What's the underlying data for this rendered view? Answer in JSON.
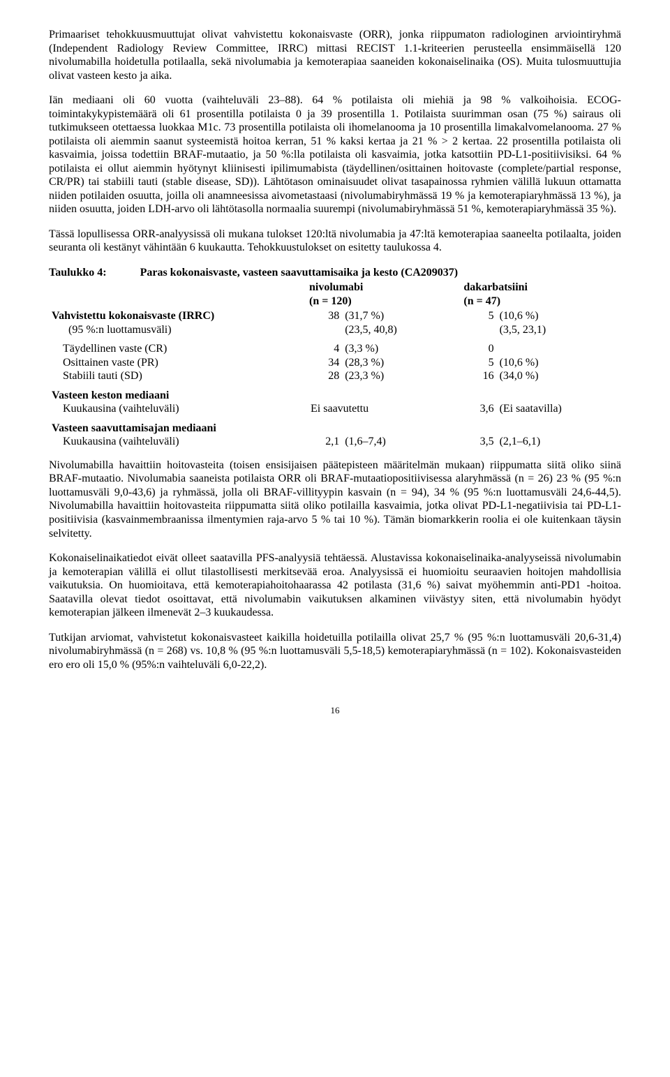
{
  "paragraphs": {
    "p1": "Primaariset tehokkuusmuuttujat olivat vahvistettu kokonaisvaste (ORR), jonka riippumaton radiologinen arviointiryhmä (Independent Radiology Review Committee, IRRC) mittasi RECIST 1.1-kriteerien perusteella ensimmäisellä 120 nivolumabilla hoidetulla potilaalla, sekä nivolumabia ja kemoterapiaa saaneiden kokonaiselinaika (OS). Muita tulosmuuttujia olivat vasteen kesto ja aika.",
    "p2": "Iän mediaani oli 60 vuotta (vaihteluväli 23–88). 64 % potilaista oli miehiä ja 98 % valkoihoisia. ECOG-toimintakykypistemäärä oli 61 prosentilla potilaista 0 ja 39 prosentilla 1. Potilaista suurimman osan (75 %) sairaus oli tutkimukseen otettaessa luokkaa M1c. 73 prosentilla potilaista oli ihomelanooma ja 10 prosentilla limakalvomelanooma. 27 % potilaista oli aiemmin saanut systeemistä hoitoa kerran, 51 % kaksi kertaa ja 21 % > 2 kertaa. 22 prosentilla potilaista oli kasvaimia, joissa todettiin BRAF-mutaatio, ja 50 %:lla potilaista oli kasvaimia, jotka katsottiin PD-L1-positiivisiksi. 64 % potilaista ei ollut aiemmin hyötynyt kliinisesti ipilimumabista (täydellinen/osittainen hoitovaste (complete/partial response, CR/PR) tai stabiili tauti (stable disease, SD)). Lähtötason ominaisuudet olivat tasapainossa ryhmien välillä lukuun ottamatta niiden potilaiden osuutta, joilla oli anamneesissa aivometastaasi (nivolumabiryhmässä 19 % ja kemoterapiaryhmässä 13 %), ja niiden osuutta, joiden LDH-arvo oli lähtötasolla normaalia suurempi (nivolumabiryhmässä 51 %, kemoterapiaryhmässä 35 %).",
    "p3": "Tässä lopullisessa ORR-analyysissä oli mukana tulokset 120:ltä nivolumabia ja 47:ltä kemoterapiaa saaneelta potilaalta, joiden seuranta oli kestänyt vähintään 6 kuukautta. Tehokkuustulokset on esitetty taulukossa 4.",
    "p4": "Nivolumabilla havaittiin hoitovasteita (toisen ensisijaisen päätepisteen määritelmän mukaan) riippumatta siitä oliko siinä BRAF-mutaatio. Nivolumabia saaneista potilaista ORR oli BRAF-mutaatiopositiivisessa alaryhmässä (n = 26) 23 % (95 %:n luottamusväli 9,0-43,6) ja ryhmässä, jolla oli BRAF-villityypin kasvain (n = 94), 34 % (95 %:n luottamusväli 24,6-44,5). Nivolumabilla havaittiin hoitovasteita riippumatta siitä oliko potilailla kasvaimia, jotka olivat PD-L1-negatiivisia tai PD-L1-positiivisia (kasvainmembraanissa ilmentymien raja-arvo 5 % tai 10 %). Tämän biomarkkerin roolia ei ole kuitenkaan täysin selvitetty.",
    "p5": "Kokonaiselinaikatiedot eivät olleet saatavilla PFS-analyysiä tehtäessä. Alustavissa kokonaiselinaika-analyyseissä nivolumabin ja kemoterapian välillä ei ollut tilastollisesti merkitsevää eroa. Analyysissä ei huomioitu seuraavien hoitojen mahdollisia vaikutuksia. On huomioitava, että kemoterapiahoitohaarassa 42 potilasta (31,6 %) saivat myöhemmin anti-PD1 -hoitoa. Saatavilla olevat tiedot osoittavat, että nivolumabin vaikutuksen alkaminen viivästyy siten, että nivolumabin hyödyt kemoterapian jälkeen ilmenevät 2–3 kuukaudessa.",
    "p6": "Tutkijan arviomat, vahvistetut kokonaisvasteet kaikilla hoidetuilla potilailla olivat 25,7 % (95 %:n luottamusväli 20,6-31,4) nivolumabiryhmässä (n = 268) vs. 10,8 % (95 %:n luottamusväli 5,5-18,5) kemoterapiaryhmässä (n = 102). Kokonaisvasteiden ero ero oli 15,0 % (95%:n vaihteluväli 6,0-22,2)."
  },
  "table": {
    "label": "Taulukko 4:",
    "title": "Paras kokonaisvaste, vasteen saavuttamisaika ja kesto (CA209037)",
    "col1_name": "nivolumabi",
    "col1_n": "(n = 120)",
    "col2_name": "dakarbatsiini",
    "col2_n": "(n = 47)",
    "rows": {
      "irrc_label": "Vahvistettu kokonaisvaste (IRRC)",
      "irrc_n1": "38",
      "irrc_p1": "(31,7 %)",
      "irrc_n2": "5",
      "irrc_p2": "(10,6 %)",
      "ci_label": "(95 %:n luottamusväli)",
      "ci_p1": "(23,5, 40,8)",
      "ci_p2": "(3,5, 23,1)",
      "cr_label": "Täydellinen vaste (CR)",
      "cr_n1": "4",
      "cr_p1": "(3,3 %)",
      "cr_n2": "0",
      "cr_p2": "",
      "pr_label": "Osittainen vaste (PR)",
      "pr_n1": "34",
      "pr_p1": "(28,3 %)",
      "pr_n2": "5",
      "pr_p2": "(10,6 %)",
      "sd_label": "Stabiili tauti (SD)",
      "sd_n1": "28",
      "sd_p1": "(23,3 %)",
      "sd_n2": "16",
      "sd_p2": "(34,0 %)",
      "dur_h": "Vasteen keston mediaani",
      "dur_label": "Kuukausina (vaihteluväli)",
      "dur_v1": "Ei saavutettu",
      "dur_n2": "3,6",
      "dur_p2": "(Ei saatavilla)",
      "time_h": "Vasteen saavuttamisajan mediaani",
      "time_label": "Kuukausina (vaihteluväli)",
      "time_n1": "2,1",
      "time_p1": "(1,6–7,4)",
      "time_n2": "3,5",
      "time_p2": "(2,1–6,1)"
    }
  },
  "footer": "16"
}
